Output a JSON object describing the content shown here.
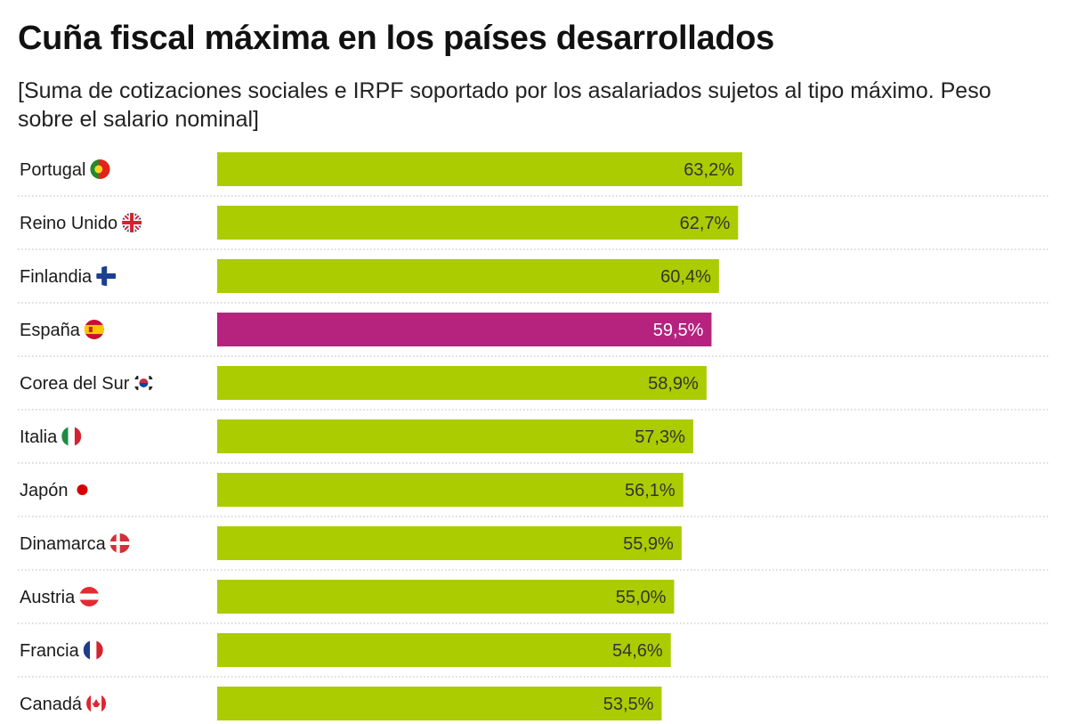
{
  "chart_data": {
    "type": "bar",
    "orientation": "horizontal",
    "title": "Cuña fiscal máxima en los países desarrollados",
    "subtitle": "[Suma de cotizaciones sociales e IRPF soportado por los asalariados sujetos al tipo máximo. Peso sobre el salario nominal]",
    "categories": [
      "Portugal",
      "Reino Unido",
      "Finlandia",
      "España",
      "Corea del Sur",
      "Italia",
      "Japón",
      "Dinamarca",
      "Austria",
      "Francia",
      "Canadá"
    ],
    "values": [
      63.2,
      62.7,
      60.4,
      59.5,
      58.9,
      57.3,
      56.1,
      55.9,
      55.0,
      54.6,
      53.5
    ],
    "value_labels": [
      "63,2%",
      "62,7%",
      "60,4%",
      "59,5%",
      "58,9%",
      "57,3%",
      "56,1%",
      "55,9%",
      "55,0%",
      "54,6%",
      "53,5%"
    ],
    "flag_icons": [
      "portugal-flag-icon",
      "uk-flag-icon",
      "finland-flag-icon",
      "spain-flag-icon",
      "south-korea-flag-icon",
      "italy-flag-icon",
      "japan-flag-icon",
      "denmark-flag-icon",
      "austria-flag-icon",
      "france-flag-icon",
      "canada-flag-icon"
    ],
    "xlim": [
      0,
      63.2
    ],
    "bar_color": "#aacc00",
    "highlight_category": "España",
    "highlight_color": "#b5237f",
    "gridlines": "dotted-separators"
  }
}
